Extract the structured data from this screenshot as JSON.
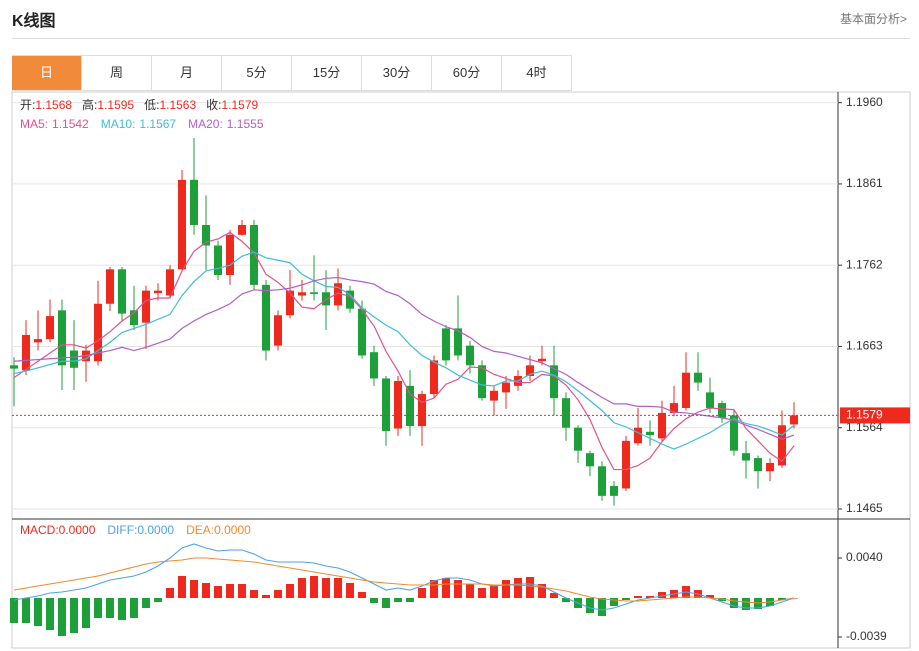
{
  "header": {
    "title": "K线图",
    "link": "基本面分析>"
  },
  "tabs": [
    {
      "label": "日",
      "active": true
    },
    {
      "label": "周",
      "active": false
    },
    {
      "label": "月",
      "active": false
    },
    {
      "label": "5分",
      "active": false
    },
    {
      "label": "15分",
      "active": false
    },
    {
      "label": "30分",
      "active": false
    },
    {
      "label": "60分",
      "active": false
    },
    {
      "label": "4时",
      "active": false
    }
  ],
  "chart_data": [
    {
      "type": "candlestick",
      "ylim": [
        1.1454,
        1.1973
      ],
      "grid": true,
      "yticks": [
        {
          "value": 1.1465,
          "label": "1.1465"
        },
        {
          "value": 1.1564,
          "label": "1.1564"
        },
        {
          "value": 1.1663,
          "label": "1.1663"
        },
        {
          "value": 1.1762,
          "label": "1.1762"
        },
        {
          "value": 1.1861,
          "label": "1.1861"
        },
        {
          "value": 1.196,
          "label": "1.1960"
        }
      ],
      "up_color": "#ee2a1f",
      "down_color": "#1d9f3a",
      "ohlc_names": [
        "开:",
        "高:",
        "低:",
        "收:"
      ],
      "ohlc_values": [
        "1.1568",
        "1.1595",
        "1.1563",
        "1.1579"
      ],
      "open": [
        1.164,
        1.1634,
        1.1668,
        1.1672,
        1.1707,
        1.1658,
        1.1645,
        1.1645,
        1.1715,
        1.1757,
        1.1707,
        1.1692,
        1.1728,
        1.1725,
        1.1757,
        1.1866,
        1.1811,
        1.1786,
        1.175,
        1.1799,
        1.1811,
        1.1738,
        1.1664,
        1.1701,
        1.1725,
        1.1729,
        1.1729,
        1.1713,
        1.1731,
        1.1709,
        1.1656,
        1.1624,
        1.1563,
        1.1615,
        1.1566,
        1.1605,
        1.1685,
        1.1685,
        1.1664,
        1.164,
        1.1597,
        1.1607,
        1.1615,
        1.1627,
        1.1645,
        1.164,
        1.16,
        1.1564,
        1.1533,
        1.1517,
        1.1493,
        1.149,
        1.1545,
        1.1559,
        1.1551,
        1.1582,
        1.1588,
        1.1631,
        1.1607,
        1.1594,
        1.1579,
        1.1533,
        1.1527,
        1.1511,
        1.1518,
        1.1568
      ],
      "high": [
        1.165,
        1.1695,
        1.1707,
        1.172,
        1.172,
        1.1695,
        1.1665,
        1.1743,
        1.176,
        1.176,
        1.1737,
        1.1737,
        1.174,
        1.1762,
        1.1878,
        1.1917,
        1.1847,
        1.1792,
        1.1805,
        1.1817,
        1.1817,
        1.1744,
        1.1707,
        1.1756,
        1.1744,
        1.1774,
        1.1756,
        1.1758,
        1.1737,
        1.1719,
        1.1664,
        1.1627,
        1.1627,
        1.1634,
        1.1609,
        1.1652,
        1.1689,
        1.1725,
        1.167,
        1.1646,
        1.1615,
        1.1627,
        1.1634,
        1.1652,
        1.1664,
        1.1664,
        1.1607,
        1.1567,
        1.1536,
        1.1523,
        1.1499,
        1.1554,
        1.1588,
        1.1573,
        1.1597,
        1.1615,
        1.1656,
        1.1656,
        1.1625,
        1.1597,
        1.1585,
        1.1548,
        1.153,
        1.1527,
        1.1585,
        1.1595
      ],
      "low": [
        1.159,
        1.1628,
        1.1658,
        1.1668,
        1.161,
        1.161,
        1.162,
        1.164,
        1.1706,
        1.1694,
        1.1683,
        1.166,
        1.1719,
        1.1722,
        1.1755,
        1.1799,
        1.1756,
        1.1744,
        1.1738,
        1.1798,
        1.1732,
        1.1646,
        1.1658,
        1.1697,
        1.1719,
        1.1719,
        1.1683,
        1.1707,
        1.1704,
        1.1648,
        1.1615,
        1.1542,
        1.1554,
        1.1554,
        1.1542,
        1.16,
        1.164,
        1.1646,
        1.163,
        1.1597,
        1.1579,
        1.1587,
        1.1609,
        1.1621,
        1.164,
        1.1579,
        1.1548,
        1.1521,
        1.1505,
        1.1475,
        1.1469,
        1.1487,
        1.1542,
        1.1542,
        1.1548,
        1.1578,
        1.1585,
        1.1609,
        1.1582,
        1.157,
        1.153,
        1.1502,
        1.149,
        1.1499,
        1.1515,
        1.1563
      ],
      "close": [
        1.1636,
        1.1677,
        1.1672,
        1.17,
        1.164,
        1.1637,
        1.1658,
        1.1715,
        1.1757,
        1.1703,
        1.1689,
        1.1731,
        1.1731,
        1.1757,
        1.1866,
        1.1811,
        1.1786,
        1.175,
        1.1799,
        1.1811,
        1.1738,
        1.1658,
        1.1701,
        1.1731,
        1.1729,
        1.1727,
        1.1713,
        1.174,
        1.1709,
        1.1652,
        1.1624,
        1.156,
        1.1621,
        1.1566,
        1.1605,
        1.1646,
        1.1646,
        1.1652,
        1.164,
        1.16,
        1.1609,
        1.1619,
        1.1627,
        1.164,
        1.1648,
        1.16,
        1.1564,
        1.1536,
        1.1517,
        1.1481,
        1.1481,
        1.1548,
        1.1564,
        1.1555,
        1.1582,
        1.1594,
        1.1631,
        1.1619,
        1.1588,
        1.1576,
        1.1536,
        1.1524,
        1.1511,
        1.1521,
        1.1567,
        1.1579
      ],
      "series": [
        {
          "name": "MA5:",
          "color": "#e2508a",
          "values": [
            1.1625,
            1.1635,
            1.1645,
            1.1655,
            1.1665,
            1.1665,
            1.1661,
            1.167,
            1.1681,
            1.1694,
            1.1704,
            1.1719,
            1.1722,
            1.1722,
            1.1755,
            1.1779,
            1.179,
            1.1794,
            1.1802,
            1.1791,
            1.1777,
            1.1751,
            1.1741,
            1.1728,
            1.1711,
            1.1709,
            1.172,
            1.1728,
            1.1724,
            1.1708,
            1.1688,
            1.1657,
            1.1633,
            1.1605,
            1.1595,
            1.16,
            1.1617,
            1.1623,
            1.1638,
            1.1637,
            1.1629,
            1.1624,
            1.1619,
            1.1619,
            1.1629,
            1.1627,
            1.1616,
            1.1598,
            1.1574,
            1.154,
            1.1513,
            1.1513,
            1.1518,
            1.1527,
            1.1547,
            1.1563,
            1.1575,
            1.1583,
            1.1588,
            1.1587,
            1.1586,
            1.1563,
            1.1548,
            1.1533,
            1.1523,
            1.1542
          ]
        },
        {
          "name": "MA10:",
          "color": "#3fbcd6",
          "values": [
            1.163,
            1.1633,
            1.1637,
            1.1641,
            1.1645,
            1.1645,
            1.1648,
            1.1658,
            1.1668,
            1.168,
            1.1685,
            1.169,
            1.1696,
            1.1702,
            1.1725,
            1.1742,
            1.1755,
            1.1758,
            1.1762,
            1.1773,
            1.1778,
            1.1771,
            1.1768,
            1.1765,
            1.1751,
            1.1743,
            1.1736,
            1.1735,
            1.1726,
            1.171,
            1.1699,
            1.1689,
            1.1681,
            1.1665,
            1.1652,
            1.1644,
            1.1637,
            1.1628,
            1.1622,
            1.1616,
            1.1615,
            1.1621,
            1.1621,
            1.1629,
            1.1633,
            1.1628,
            1.162,
            1.1609,
            1.1597,
            1.1585,
            1.157,
            1.1565,
            1.1558,
            1.1551,
            1.1544,
            1.1538,
            1.1544,
            1.1551,
            1.1558,
            1.1567,
            1.1575,
            1.1569,
            1.1566,
            1.1561,
            1.1555,
            1.1567
          ]
        },
        {
          "name": "MA20:",
          "color": "#b35ec4",
          "values": [
            1.1645,
            1.1646,
            1.1647,
            1.1648,
            1.1649,
            1.165,
            1.1652,
            1.1655,
            1.1658,
            1.1662,
            1.1658,
            1.1662,
            1.1667,
            1.1672,
            1.1685,
            1.1694,
            1.1702,
            1.1708,
            1.1715,
            1.1727,
            1.1732,
            1.1731,
            1.1732,
            1.1734,
            1.1738,
            1.1743,
            1.1746,
            1.1747,
            1.1744,
            1.1742,
            1.1739,
            1.173,
            1.1725,
            1.1715,
            1.1702,
            1.1694,
            1.1687,
            1.1682,
            1.1674,
            1.1663,
            1.1657,
            1.1655,
            1.1651,
            1.1647,
            1.1643,
            1.1636,
            1.1629,
            1.1619,
            1.161,
            1.1601,
            1.1593,
            1.1593,
            1.159,
            1.159,
            1.1589,
            1.1583,
            1.1582,
            1.158,
            1.1578,
            1.1576,
            1.1573,
            1.1567,
            1.1562,
            1.1556,
            1.155,
            1.1555
          ]
        }
      ],
      "last_price": {
        "value": 1.1579,
        "label": "1.1579"
      }
    },
    {
      "type": "macd",
      "ylim": [
        -0.005,
        0.0078
      ],
      "yticks": [
        {
          "value": -0.0039,
          "label": "-0.0039"
        },
        {
          "value": 0.004,
          "label": "0.0040"
        }
      ],
      "name": "MACD:",
      "value_label": "0.0000",
      "up_color": "#ee2a1f",
      "down_color": "#1d9f3a",
      "values": [
        -0.0025,
        -0.0025,
        -0.0028,
        -0.0032,
        -0.0038,
        -0.0035,
        -0.003,
        -0.002,
        -0.002,
        -0.0022,
        -0.002,
        -0.001,
        -0.0004,
        0.001,
        0.0022,
        0.0018,
        0.0015,
        0.0012,
        0.0014,
        0.0014,
        0.0008,
        0.0003,
        0.0008,
        0.0014,
        0.002,
        0.0022,
        0.002,
        0.002,
        0.0015,
        0.0006,
        -0.0005,
        -0.001,
        -0.0004,
        -0.0004,
        0.001,
        0.0018,
        0.002,
        0.0018,
        0.0014,
        0.001,
        0.0012,
        0.0018,
        0.002,
        0.0021,
        0.0014,
        0.0005,
        -0.0004,
        -0.001,
        -0.0015,
        -0.0018,
        -0.0008,
        -0.0002,
        0.0002,
        0.0002,
        0.0006,
        0.0008,
        0.0012,
        0.0008,
        0.0003,
        -0.0003,
        -0.001,
        -0.0012,
        -0.0011,
        -0.0008,
        -0.0002,
        0
      ],
      "series": [
        {
          "name": "DIFF:",
          "color": "#4da3e5",
          "value_label": "0.0000",
          "values": [
            -0.0002,
            0,
            0.0002,
            0.0005,
            0.0006,
            0.0008,
            0.001,
            0.0014,
            0.0018,
            0.002,
            0.0022,
            0.0026,
            0.0032,
            0.004,
            0.005,
            0.0054,
            0.005,
            0.0047,
            0.0048,
            0.0048,
            0.0044,
            0.0038,
            0.0036,
            0.0036,
            0.0036,
            0.0035,
            0.0032,
            0.003,
            0.0026,
            0.002,
            0.0014,
            0.0008,
            0.001,
            0.0008,
            0.0012,
            0.0017,
            0.002,
            0.002,
            0.0018,
            0.0014,
            0.0012,
            0.0013,
            0.0014,
            0.0014,
            0.0012,
            0.0006,
            0,
            -0.0005,
            -0.001,
            -0.0012,
            -0.001,
            -0.0006,
            -0.0002,
            0,
            0.0002,
            0.0004,
            0.0006,
            0.0004,
            0,
            -0.0004,
            -0.0008,
            -0.001,
            -0.001,
            -0.0008,
            -0.0004,
            0
          ]
        },
        {
          "name": "DEA:",
          "color": "#f08a2e",
          "value_label": "0.0000",
          "values": [
            0.0008,
            0.001,
            0.0012,
            0.0014,
            0.0016,
            0.0018,
            0.002,
            0.0022,
            0.0025,
            0.0028,
            0.0031,
            0.0034,
            0.0036,
            0.0037,
            0.0038,
            0.004,
            0.004,
            0.0039,
            0.0038,
            0.0037,
            0.0036,
            0.0034,
            0.0032,
            0.003,
            0.0028,
            0.0026,
            0.0024,
            0.0022,
            0.002,
            0.0018,
            0.0016,
            0.0015,
            0.0014,
            0.0013,
            0.0013,
            0.0013,
            0.0014,
            0.0014,
            0.0014,
            0.0014,
            0.0013,
            0.0013,
            0.0013,
            0.0012,
            0.0011,
            0.0009,
            0.0007,
            0.0004,
            0.0001,
            -0.0001,
            -0.0002,
            -0.0003,
            -0.0003,
            -0.0002,
            -0.0001,
            0,
            0.0001,
            0.0001,
            0,
            -0.0001,
            -0.0003,
            -0.0004,
            -0.0005,
            -0.0004,
            -0.0002,
            0
          ]
        }
      ]
    }
  ]
}
